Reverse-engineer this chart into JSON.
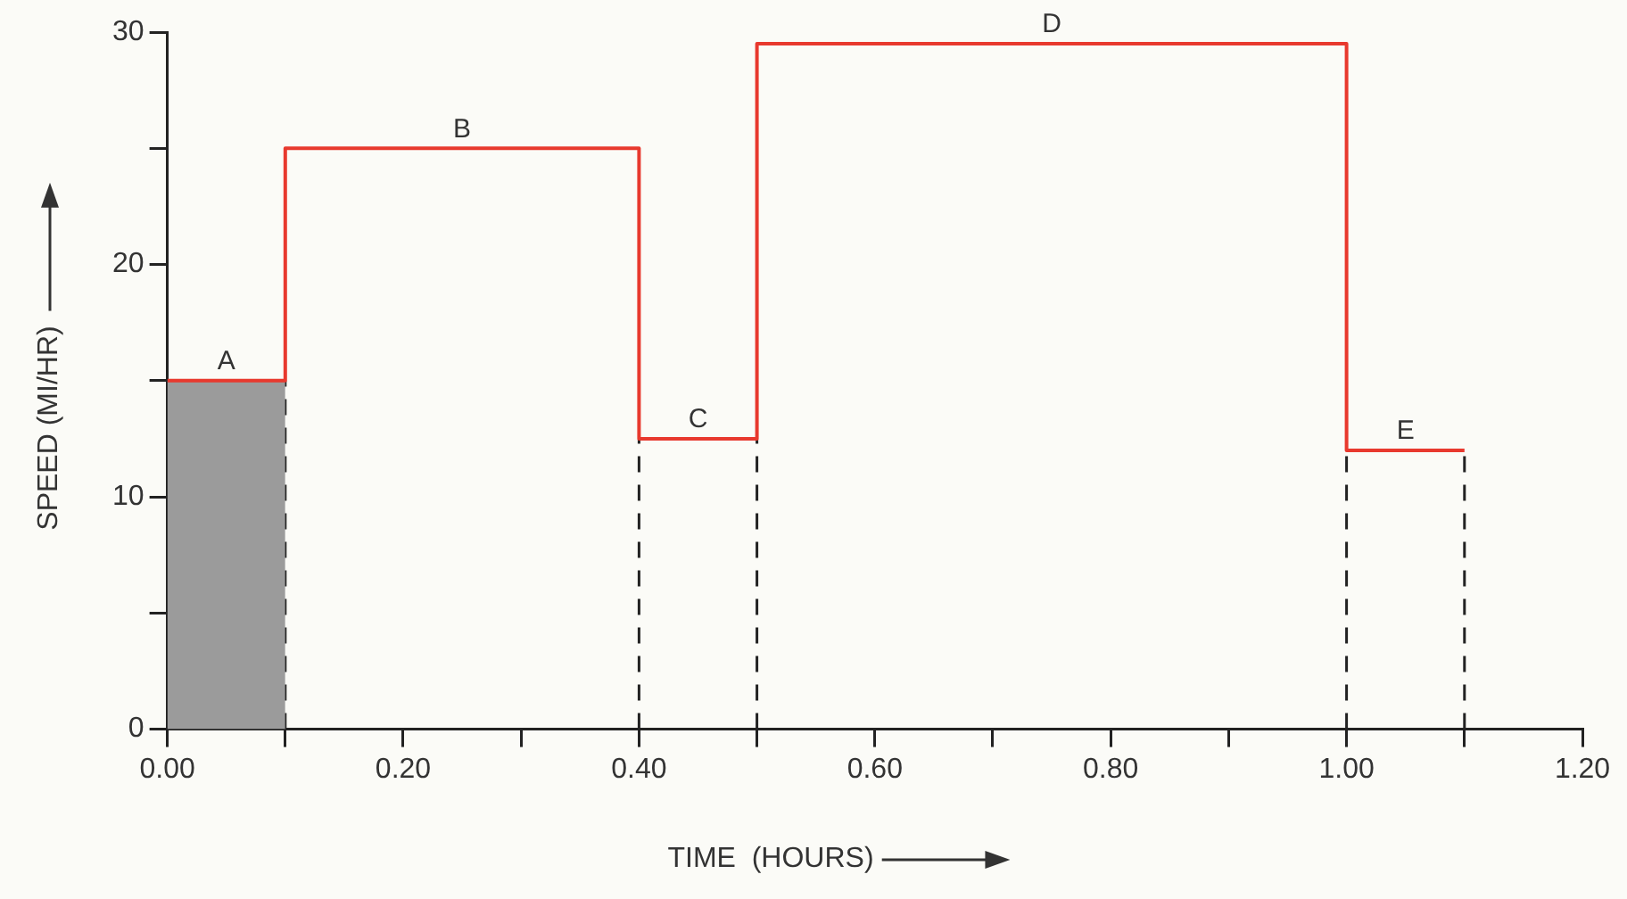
{
  "chart_data": {
    "type": "step",
    "xlabel": "TIME  (HOURS)",
    "ylabel": "SPEED (MI/HR)",
    "xlim": [
      0,
      1.2
    ],
    "ylim": [
      0,
      30
    ],
    "xticks": [
      {
        "value": 0,
        "label": "0.00"
      },
      {
        "value": 0.1,
        "label": null
      },
      {
        "value": 0.2,
        "label": "0.20"
      },
      {
        "value": 0.3,
        "label": null
      },
      {
        "value": 0.4,
        "label": "0.40"
      },
      {
        "value": 0.5,
        "label": null
      },
      {
        "value": 0.6,
        "label": "0.60"
      },
      {
        "value": 0.7,
        "label": null
      },
      {
        "value": 0.8,
        "label": "0.80"
      },
      {
        "value": 0.9,
        "label": null
      },
      {
        "value": 1.0,
        "label": "1.00"
      },
      {
        "value": 1.1,
        "label": null
      },
      {
        "value": 1.2,
        "label": "1.20"
      }
    ],
    "yticks": [
      0,
      {
        "value": 5,
        "label": null
      },
      10,
      {
        "value": 15,
        "label": null
      },
      20,
      {
        "value": 25,
        "label": null
      },
      30
    ],
    "marker": "none",
    "grid": false,
    "legend": false,
    "series": [
      {
        "type": "area",
        "color": "#9b9b9b",
        "x": [
          0,
          0.1
        ],
        "values": [
          15,
          15
        ]
      },
      {
        "type": "line",
        "line_style": "dashed",
        "color": "#222222",
        "x": [
          0.1,
          0.1
        ],
        "values": [
          0,
          15
        ]
      },
      {
        "type": "line",
        "line_style": "dashed",
        "color": "#222222",
        "x": [
          0.4,
          0.4
        ],
        "values": [
          0,
          12.5
        ]
      },
      {
        "type": "line",
        "line_style": "dashed",
        "color": "#222222",
        "x": [
          0.5,
          0.5
        ],
        "values": [
          0,
          12.5
        ]
      },
      {
        "type": "line",
        "line_style": "dashed",
        "color": "#222222",
        "x": [
          1.0,
          1.0
        ],
        "values": [
          0,
          12
        ]
      },
      {
        "type": "line",
        "line_style": "dashed",
        "color": "#222222",
        "x": [
          1.1,
          1.1
        ],
        "values": [
          0,
          12
        ]
      },
      {
        "color": "#e8392e",
        "x": [
          0,
          0.1,
          0.4,
          0.5,
          1.0,
          1.1
        ],
        "values": [
          15,
          25,
          12.5,
          29.5,
          12,
          12
        ]
      }
    ],
    "annotations": [
      {
        "text": "A",
        "x": 0.05,
        "y": 15
      },
      {
        "text": "B",
        "x": 0.25,
        "y": 25
      },
      {
        "text": "C",
        "x": 0.45,
        "y": 12.5
      },
      {
        "text": "D",
        "x": 0.75,
        "y": 29.5
      },
      {
        "text": "E",
        "x": 1.05,
        "y": 12
      }
    ]
  }
}
